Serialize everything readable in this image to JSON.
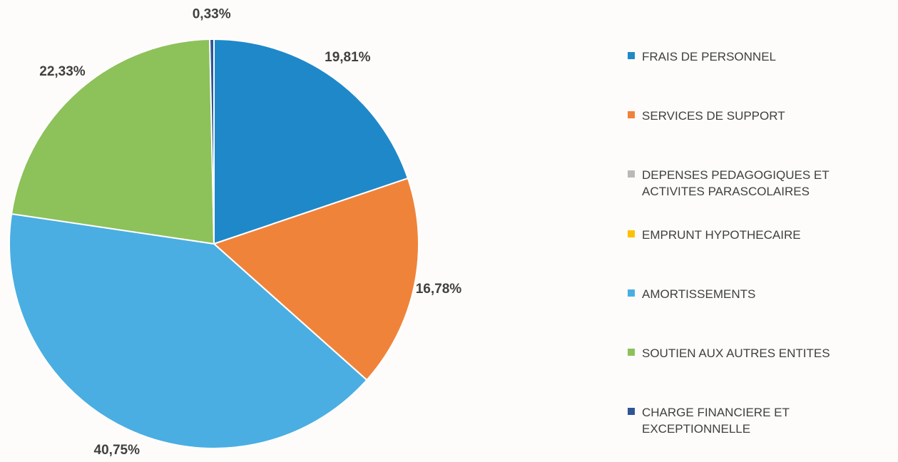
{
  "chart_data": {
    "type": "pie",
    "categories": [
      "FRAIS DE PERSONNEL",
      "SERVICES DE SUPPORT",
      "DEPENSES PEDAGOGIQUES ET ACTIVITES PARASCOLAIRES",
      "EMPRUNT HYPOTHECAIRE",
      "AMORTISSEMENTS",
      "SOUTIEN AUX AUTRES ENTITES",
      "CHARGE FINANCIERE ET EXCEPTIONNELLE"
    ],
    "values": [
      19.81,
      16.78,
      0,
      0,
      40.75,
      22.33,
      0.33
    ],
    "value_labels": [
      "19,81%",
      "16,78%",
      null,
      null,
      "40,75%",
      "22,33%",
      "0,33%"
    ],
    "colors": [
      "#1f88c9",
      "#f0833a",
      "#b9b9b9",
      "#ffc000",
      "#4aaee2",
      "#8dc15a",
      "#2f5597"
    ],
    "legend": "right"
  }
}
